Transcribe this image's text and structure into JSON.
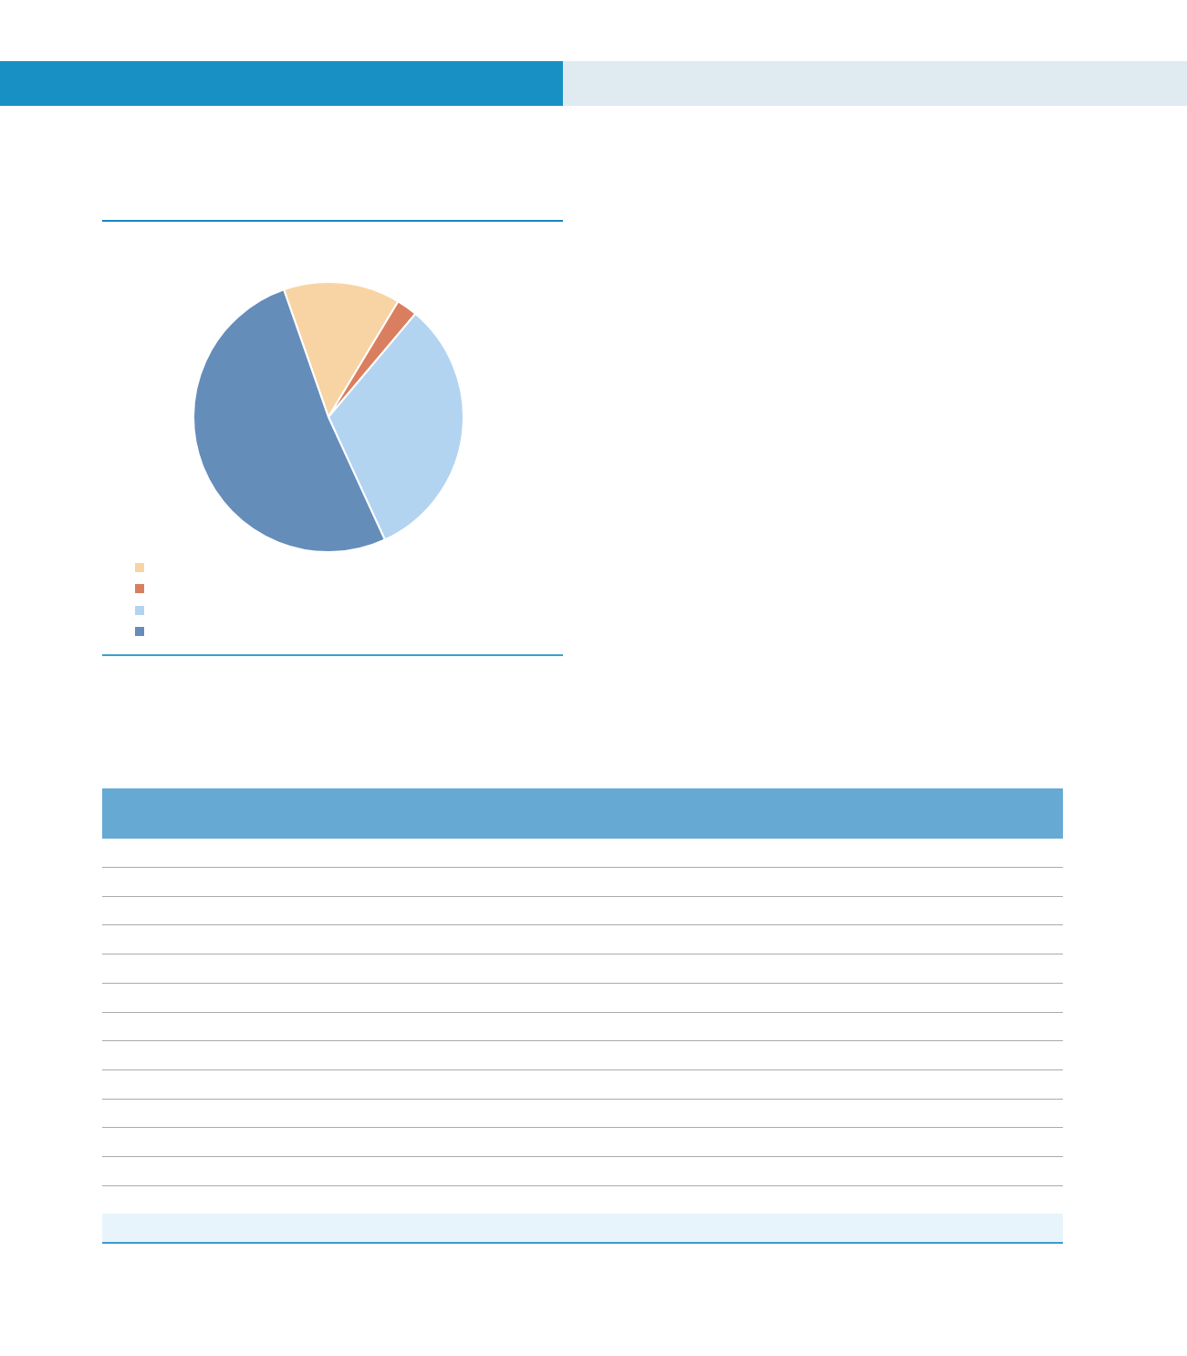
{
  "chart_data": {
    "type": "pie",
    "categories": [
      null,
      null,
      null,
      null
    ],
    "values": [
      14,
      2.5,
      32,
      51.5
    ],
    "colors": [
      "#f8d4a5",
      "#d97f5f",
      "#b3d4f0",
      "#648dba"
    ]
  }
}
